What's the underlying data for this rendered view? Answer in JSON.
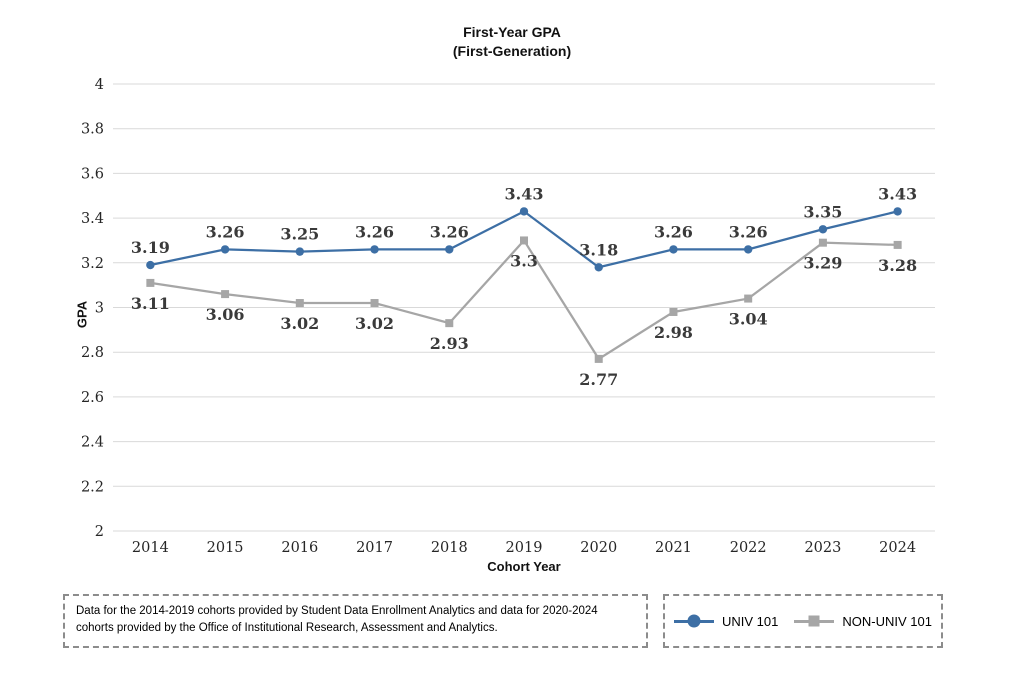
{
  "page": {
    "background_color": "#ffffff"
  },
  "chart": {
    "title_line1": "First-Year GPA",
    "title_line2": "(First-Generation)",
    "y_axis_title": "GPA",
    "x_axis_title": "Cohort Year"
  },
  "chart_data": {
    "type": "line",
    "title": "First-Year GPA (First-Generation)",
    "xlabel": "Cohort Year",
    "ylabel": "GPA",
    "ylim": [
      2,
      4
    ],
    "grid": true,
    "gridline_color": "#d9d9d9",
    "legend_position": "bottom-right",
    "ytick_values": [
      4,
      3.8,
      3.6,
      3.4,
      3.2,
      3,
      2.8,
      2.6,
      2.4,
      2.2,
      2
    ],
    "ytick_labels": [
      "4",
      "3.8",
      "3.6",
      "3.4",
      "3.2",
      "3",
      "2.8",
      "2.6",
      "2.4",
      "2.2",
      "2"
    ],
    "categories": [
      "2014",
      "2015",
      "2016",
      "2017",
      "2018",
      "2019",
      "2020",
      "2021",
      "2022",
      "2023",
      "2024"
    ],
    "series": [
      {
        "name": "UNIV 101",
        "color": "#3d6fa5",
        "marker": "circle",
        "label_side": "above",
        "values": [
          3.19,
          3.26,
          3.25,
          3.26,
          3.26,
          3.43,
          3.18,
          3.26,
          3.26,
          3.35,
          3.43
        ],
        "labels": [
          "3.19",
          "3.26",
          "3.25",
          "3.26",
          "3.26",
          "3.43",
          "3.18",
          "3.26",
          "3.26",
          "3.35",
          "3.43"
        ]
      },
      {
        "name": "NON-UNIV 101",
        "color": "#a6a6a6",
        "marker": "square",
        "label_side": "below",
        "values": [
          3.11,
          3.06,
          3.02,
          3.02,
          2.93,
          3.3,
          2.77,
          2.98,
          3.04,
          3.29,
          3.28
        ],
        "labels": [
          "3.11",
          "3.06",
          "3.02",
          "3.02",
          "2.93",
          "3.3",
          "2.77",
          "2.98",
          "3.04",
          "3.29",
          "3.28"
        ]
      }
    ]
  },
  "footnote": {
    "text": "Data for the 2014-2019 cohorts provided by Student Data Enrollment Analytics and data for 2020-2024 cohorts provided by the Office of Institutional Research, Assessment and Analytics."
  },
  "legend": {
    "items": [
      {
        "label": "UNIV 101"
      },
      {
        "label": "NON-UNIV 101"
      }
    ]
  }
}
